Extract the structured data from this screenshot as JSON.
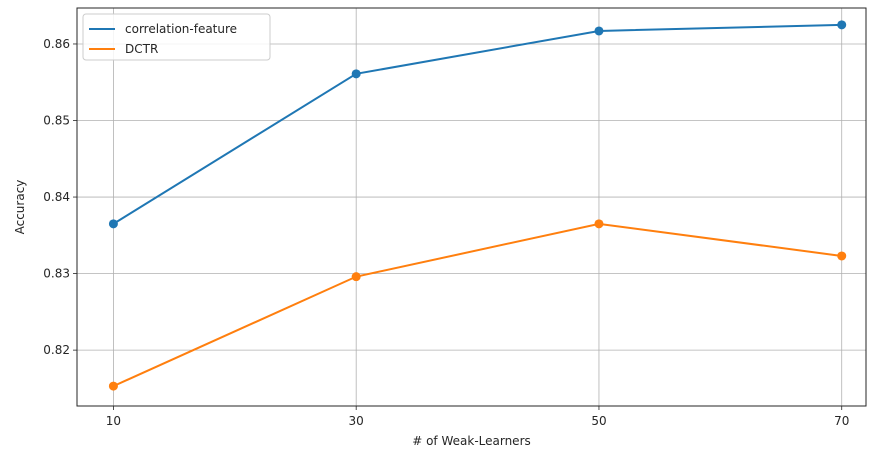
{
  "chart_data": {
    "type": "line",
    "title": "",
    "xlabel": "# of Weak-Learners",
    "ylabel": "Accuracy",
    "x": [
      10,
      30,
      50,
      70
    ],
    "x_ticks": [
      "10",
      "30",
      "50",
      "70"
    ],
    "y_ticks": [
      "0.82",
      "0.83",
      "0.84",
      "0.85",
      "0.86"
    ],
    "y_tick_values": [
      0.82,
      0.83,
      0.84,
      0.85,
      0.86
    ],
    "xlim": [
      7,
      72
    ],
    "ylim": [
      0.8127,
      0.8647
    ],
    "grid": true,
    "legend_position": "top-left",
    "series": [
      {
        "name": "correlation-feature",
        "color": "#1f77b4",
        "values": [
          0.8365,
          0.8561,
          0.8617,
          0.8625
        ]
      },
      {
        "name": "DCTR",
        "color": "#ff7f0e",
        "values": [
          0.8153,
          0.8296,
          0.8365,
          0.8323
        ]
      }
    ]
  }
}
